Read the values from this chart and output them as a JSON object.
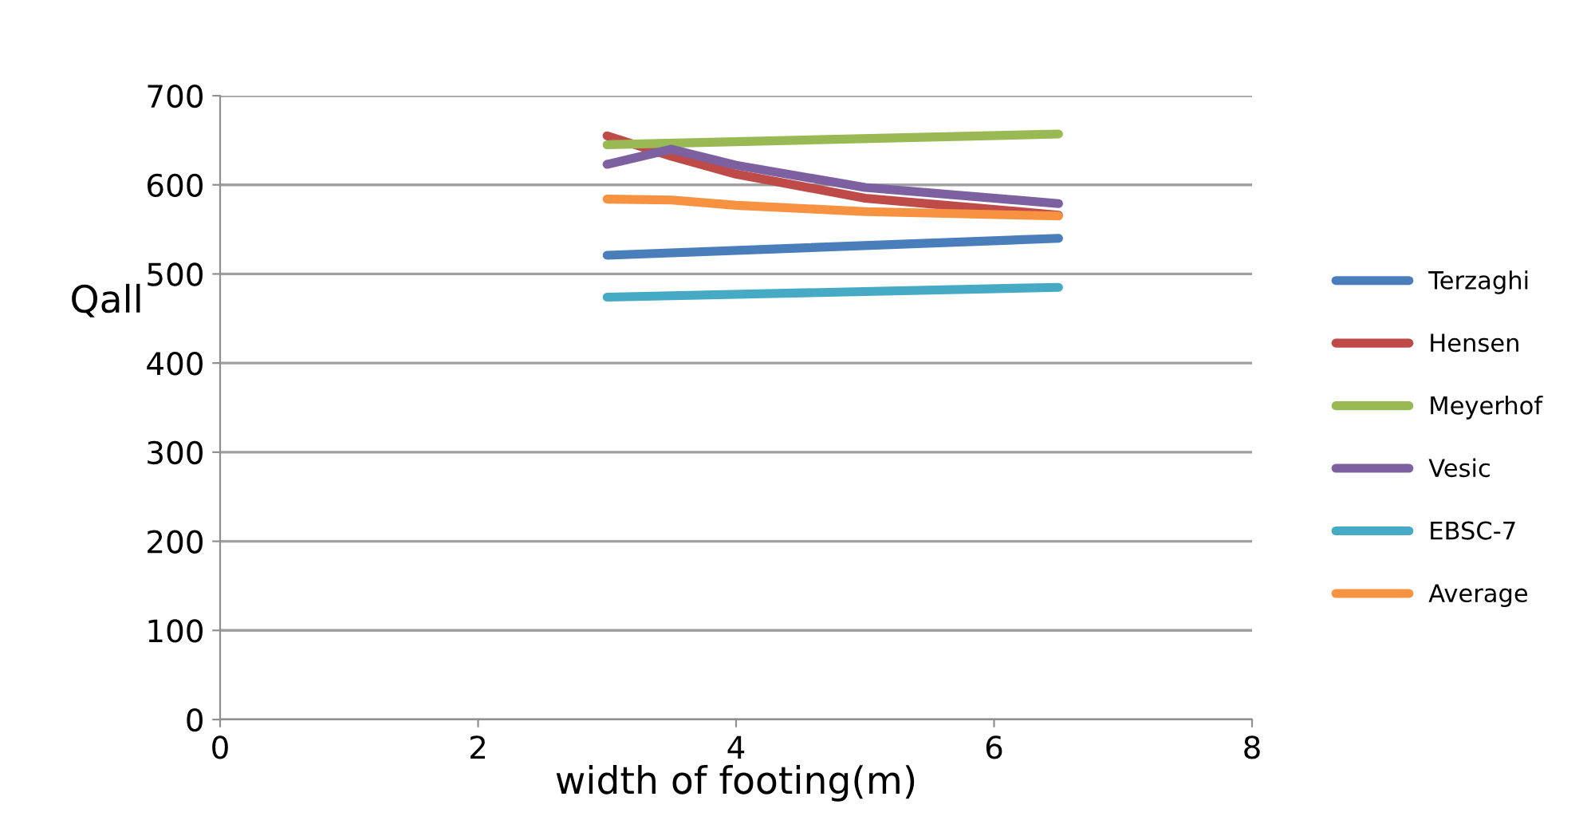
{
  "chart_data": {
    "type": "line",
    "xlabel": "width of footing(m)",
    "ylabel": "Qall",
    "xlim": [
      0,
      8
    ],
    "xticks": [
      0,
      2,
      4,
      6,
      8
    ],
    "ylim": [
      0,
      700
    ],
    "yticks": [
      0,
      100,
      200,
      300,
      400,
      500,
      600,
      700
    ],
    "grid": "y",
    "legend": "right",
    "marker": "none",
    "line_style": "solid",
    "series": [
      {
        "name": "Terzaghi",
        "color": "#4a7ebb",
        "x": [
          3,
          6.5
        ],
        "values": [
          521,
          540
        ]
      },
      {
        "name": "Hensen",
        "color": "#be4b48",
        "x": [
          3,
          3.5,
          4,
          5,
          6.5
        ],
        "values": [
          655,
          632,
          612,
          585,
          566
        ]
      },
      {
        "name": "Meyerhof",
        "color": "#98b954",
        "x": [
          3,
          6.5
        ],
        "values": [
          645,
          657
        ]
      },
      {
        "name": "Vesic",
        "color": "#7d60a0",
        "x": [
          3,
          3.5,
          4,
          5,
          6.5
        ],
        "values": [
          623,
          640,
          622,
          597,
          579
        ]
      },
      {
        "name": "EBSC-7",
        "color": "#46aac5",
        "x": [
          3,
          6.5
        ],
        "values": [
          474,
          485
        ]
      },
      {
        "name": "Average",
        "color": "#f69240",
        "x": [
          3,
          3.5,
          4,
          5,
          6.5
        ],
        "values": [
          584,
          583,
          577,
          570,
          565
        ]
      }
    ]
  }
}
